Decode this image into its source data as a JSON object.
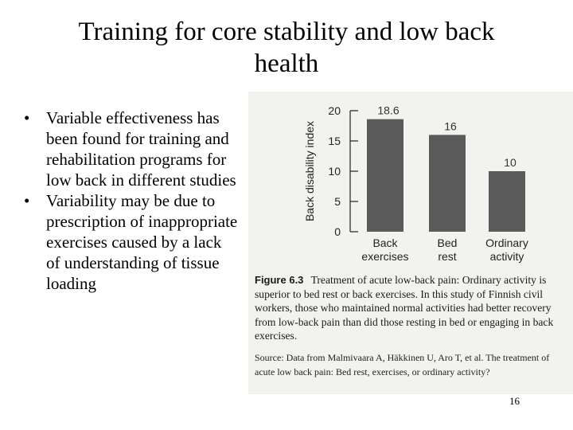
{
  "title": "Training for core stability and low back health",
  "bullets": [
    "Variable effectiveness has been found for training and rehabilitation programs for low back in different studies",
    "Variability may be due to prescription of inappropriate exercises caused by a lack of understanding of tissue loading"
  ],
  "chart_data": {
    "type": "bar",
    "categories": [
      "Back exercises",
      "Bed rest",
      "Ordinary activity"
    ],
    "values": [
      18.6,
      16,
      10
    ],
    "data_labels": [
      "18.6",
      "16",
      "10"
    ],
    "ylabel": "Back disability index",
    "xlabel": "",
    "ylim": [
      0,
      20
    ],
    "yticks": [
      0,
      5,
      10,
      15,
      20
    ],
    "bar_color": "#5a5a5a"
  },
  "caption": {
    "label": "Figure 6.3",
    "text": "Treatment of acute low-back pain: Ordinary activity is superior to bed rest or back exercises. In this study of Finnish civil workers, those who maintained normal activities had better recovery from low-back pain than did those resting in bed or engaging in back exercises.",
    "source": "Source: Data from Malmivaara A, Häkkinen U, Aro T, et al. The treatment of acute low back pain: Bed rest, exercises, or ordinary activity?"
  },
  "page_number": "16"
}
